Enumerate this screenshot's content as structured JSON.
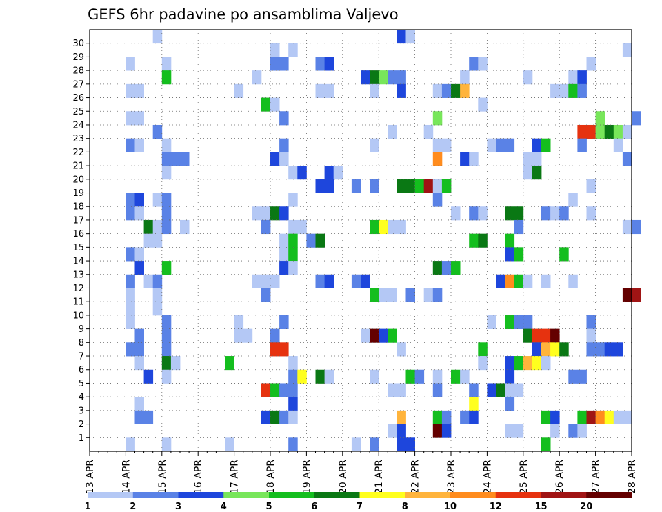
{
  "chart_data": {
    "type": "heatmap",
    "title": "GEFS 6hr padavine po ansamblima Valjevo",
    "y_members": [
      1,
      2,
      3,
      4,
      5,
      6,
      7,
      8,
      9,
      10,
      11,
      12,
      13,
      14,
      15,
      16,
      17,
      18,
      19,
      20,
      21,
      22,
      23,
      24,
      25,
      26,
      27,
      28,
      29,
      30
    ],
    "x_tick_labels": [
      "13 APR",
      "14 APR",
      "15 APR",
      "16 APR",
      "17 APR",
      "18 APR",
      "19 APR",
      "20 APR",
      "21 APR",
      "22 APR",
      "23 APR",
      "24 APR",
      "25 APR",
      "26 APR",
      "27 APR",
      "28 APR"
    ],
    "time_step_hours": 6,
    "x_range_steps": [
      0,
      60
    ],
    "grid": true,
    "legend": {
      "position": "bottom",
      "bounds": [
        "1",
        "2",
        "3",
        "4",
        "5",
        "6",
        "7",
        "8",
        "10",
        "12",
        "15",
        "20"
      ],
      "colors": [
        "#b4c8f5",
        "#5a82e6",
        "#1e46dc",
        "#78e65a",
        "#14be1e",
        "#0a7814",
        "#ffff1e",
        "#ffb43c",
        "#ff8c1e",
        "#e6320f",
        "#a01414",
        "#640000"
      ]
    },
    "cells_note": "cells are [member, time_step_index_from_13_APR_00UTC, color_class_index]",
    "cells": [
      [
        30,
        7,
        0
      ],
      [
        30,
        34,
        2
      ],
      [
        30,
        35,
        0
      ],
      [
        29,
        20,
        0
      ],
      [
        29,
        22,
        0
      ],
      [
        29,
        59,
        0
      ],
      [
        28,
        4,
        0
      ],
      [
        28,
        8,
        0
      ],
      [
        28,
        20,
        1
      ],
      [
        28,
        21,
        1
      ],
      [
        28,
        25,
        1
      ],
      [
        28,
        26,
        2
      ],
      [
        28,
        42,
        1
      ],
      [
        28,
        43,
        0
      ],
      [
        28,
        55,
        0
      ],
      [
        27,
        8,
        4
      ],
      [
        27,
        18,
        0
      ],
      [
        27,
        30,
        2
      ],
      [
        27,
        31,
        5
      ],
      [
        27,
        32,
        3
      ],
      [
        27,
        33,
        1
      ],
      [
        27,
        34,
        1
      ],
      [
        27,
        41,
        0
      ],
      [
        27,
        48,
        0
      ],
      [
        27,
        53,
        0
      ],
      [
        27,
        54,
        2
      ],
      [
        26,
        4,
        0
      ],
      [
        26,
        5,
        0
      ],
      [
        26,
        16,
        0
      ],
      [
        26,
        25,
        0
      ],
      [
        26,
        26,
        0
      ],
      [
        26,
        31,
        0
      ],
      [
        26,
        34,
        2
      ],
      [
        26,
        38,
        0
      ],
      [
        26,
        39,
        1
      ],
      [
        26,
        40,
        5
      ],
      [
        26,
        41,
        7
      ],
      [
        26,
        51,
        0
      ],
      [
        26,
        52,
        0
      ],
      [
        26,
        53,
        4
      ],
      [
        26,
        54,
        1
      ],
      [
        25,
        19,
        4
      ],
      [
        25,
        20,
        0
      ],
      [
        25,
        43,
        0
      ],
      [
        24,
        4,
        0
      ],
      [
        24,
        5,
        0
      ],
      [
        24,
        21,
        1
      ],
      [
        24,
        38,
        3
      ],
      [
        24,
        56,
        3
      ],
      [
        24,
        60,
        1
      ],
      [
        23,
        7,
        1
      ],
      [
        23,
        33,
        0
      ],
      [
        23,
        37,
        0
      ],
      [
        23,
        54,
        9
      ],
      [
        23,
        55,
        9
      ],
      [
        23,
        56,
        3
      ],
      [
        23,
        57,
        5
      ],
      [
        23,
        58,
        3
      ],
      [
        23,
        59,
        0
      ],
      [
        22,
        4,
        1
      ],
      [
        22,
        5,
        0
      ],
      [
        22,
        8,
        0
      ],
      [
        22,
        21,
        1
      ],
      [
        22,
        31,
        0
      ],
      [
        22,
        38,
        0
      ],
      [
        22,
        39,
        0
      ],
      [
        22,
        44,
        0
      ],
      [
        22,
        45,
        1
      ],
      [
        22,
        46,
        1
      ],
      [
        22,
        49,
        2
      ],
      [
        22,
        50,
        4
      ],
      [
        22,
        54,
        1
      ],
      [
        22,
        58,
        0
      ],
      [
        21,
        8,
        1
      ],
      [
        21,
        9,
        1
      ],
      [
        21,
        10,
        1
      ],
      [
        21,
        20,
        2
      ],
      [
        21,
        21,
        0
      ],
      [
        21,
        38,
        8
      ],
      [
        21,
        41,
        2
      ],
      [
        21,
        42,
        0
      ],
      [
        21,
        48,
        0
      ],
      [
        21,
        49,
        0
      ],
      [
        21,
        59,
        1
      ],
      [
        20,
        8,
        0
      ],
      [
        20,
        22,
        0
      ],
      [
        20,
        23,
        2
      ],
      [
        20,
        26,
        2
      ],
      [
        20,
        27,
        0
      ],
      [
        20,
        48,
        0
      ],
      [
        20,
        49,
        5
      ],
      [
        19,
        25,
        2
      ],
      [
        19,
        26,
        2
      ],
      [
        19,
        29,
        1
      ],
      [
        19,
        31,
        1
      ],
      [
        19,
        34,
        5
      ],
      [
        19,
        35,
        5
      ],
      [
        19,
        36,
        4
      ],
      [
        19,
        37,
        10
      ],
      [
        19,
        38,
        0
      ],
      [
        19,
        39,
        4
      ],
      [
        19,
        55,
        0
      ],
      [
        18,
        4,
        1
      ],
      [
        18,
        5,
        2
      ],
      [
        18,
        7,
        0
      ],
      [
        18,
        8,
        1
      ],
      [
        18,
        22,
        0
      ],
      [
        18,
        38,
        1
      ],
      [
        18,
        53,
        0
      ],
      [
        17,
        4,
        1
      ],
      [
        17,
        5,
        0
      ],
      [
        17,
        8,
        1
      ],
      [
        17,
        18,
        0
      ],
      [
        17,
        19,
        0
      ],
      [
        17,
        20,
        5
      ],
      [
        17,
        21,
        2
      ],
      [
        17,
        40,
        0
      ],
      [
        17,
        42,
        1
      ],
      [
        17,
        43,
        0
      ],
      [
        17,
        46,
        5
      ],
      [
        17,
        47,
        5
      ],
      [
        17,
        50,
        1
      ],
      [
        17,
        51,
        0
      ],
      [
        17,
        52,
        1
      ],
      [
        17,
        55,
        0
      ],
      [
        16,
        6,
        5
      ],
      [
        16,
        7,
        0
      ],
      [
        16,
        8,
        1
      ],
      [
        16,
        10,
        0
      ],
      [
        16,
        19,
        1
      ],
      [
        16,
        22,
        0
      ],
      [
        16,
        23,
        0
      ],
      [
        16,
        31,
        4
      ],
      [
        16,
        32,
        6
      ],
      [
        16,
        33,
        0
      ],
      [
        16,
        34,
        0
      ],
      [
        16,
        47,
        1
      ],
      [
        16,
        59,
        0
      ],
      [
        16,
        60,
        1
      ],
      [
        15,
        6,
        0
      ],
      [
        15,
        7,
        0
      ],
      [
        15,
        21,
        0
      ],
      [
        15,
        22,
        4
      ],
      [
        15,
        24,
        1
      ],
      [
        15,
        25,
        5
      ],
      [
        15,
        42,
        4
      ],
      [
        15,
        43,
        5
      ],
      [
        15,
        46,
        4
      ],
      [
        14,
        4,
        1
      ],
      [
        14,
        5,
        0
      ],
      [
        14,
        21,
        0
      ],
      [
        14,
        22,
        4
      ],
      [
        14,
        46,
        2
      ],
      [
        14,
        47,
        4
      ],
      [
        14,
        52,
        4
      ],
      [
        13,
        5,
        2
      ],
      [
        13,
        8,
        4
      ],
      [
        13,
        21,
        2
      ],
      [
        13,
        22,
        0
      ],
      [
        13,
        38,
        5
      ],
      [
        13,
        39,
        1
      ],
      [
        13,
        40,
        4
      ],
      [
        12,
        4,
        1
      ],
      [
        12,
        6,
        0
      ],
      [
        12,
        7,
        1
      ],
      [
        12,
        18,
        0
      ],
      [
        12,
        19,
        0
      ],
      [
        12,
        20,
        0
      ],
      [
        12,
        25,
        1
      ],
      [
        12,
        26,
        2
      ],
      [
        12,
        29,
        1
      ],
      [
        12,
        30,
        2
      ],
      [
        12,
        45,
        2
      ],
      [
        12,
        46,
        8
      ],
      [
        12,
        47,
        4
      ],
      [
        12,
        48,
        0
      ],
      [
        12,
        50,
        0
      ],
      [
        12,
        53,
        0
      ],
      [
        11,
        4,
        0
      ],
      [
        11,
        7,
        0
      ],
      [
        11,
        19,
        1
      ],
      [
        11,
        31,
        4
      ],
      [
        11,
        32,
        0
      ],
      [
        11,
        33,
        0
      ],
      [
        11,
        35,
        1
      ],
      [
        11,
        37,
        0
      ],
      [
        11,
        38,
        1
      ],
      [
        11,
        59,
        11
      ],
      [
        11,
        60,
        10
      ],
      [
        10,
        4,
        0
      ],
      [
        10,
        7,
        0
      ],
      [
        9,
        4,
        0
      ],
      [
        9,
        8,
        1
      ],
      [
        9,
        16,
        0
      ],
      [
        9,
        21,
        1
      ],
      [
        9,
        44,
        0
      ],
      [
        9,
        46,
        4
      ],
      [
        9,
        47,
        1
      ],
      [
        9,
        48,
        1
      ],
      [
        9,
        55,
        1
      ],
      [
        8,
        5,
        1
      ],
      [
        8,
        8,
        1
      ],
      [
        8,
        16,
        0
      ],
      [
        8,
        17,
        0
      ],
      [
        8,
        20,
        1
      ],
      [
        8,
        30,
        0
      ],
      [
        8,
        31,
        11
      ],
      [
        8,
        32,
        2
      ],
      [
        8,
        33,
        4
      ],
      [
        8,
        48,
        5
      ],
      [
        8,
        49,
        9
      ],
      [
        8,
        50,
        9
      ],
      [
        8,
        51,
        11
      ],
      [
        8,
        55,
        0
      ],
      [
        7,
        4,
        1
      ],
      [
        7,
        5,
        1
      ],
      [
        7,
        8,
        1
      ],
      [
        7,
        20,
        9
      ],
      [
        7,
        21,
        9
      ],
      [
        7,
        34,
        0
      ],
      [
        7,
        43,
        4
      ],
      [
        7,
        49,
        2
      ],
      [
        7,
        50,
        7
      ],
      [
        7,
        51,
        6
      ],
      [
        7,
        52,
        5
      ],
      [
        7,
        55,
        1
      ],
      [
        7,
        56,
        1
      ],
      [
        7,
        57,
        2
      ],
      [
        7,
        58,
        2
      ],
      [
        6,
        5,
        0
      ],
      [
        6,
        8,
        5
      ],
      [
        6,
        9,
        0
      ],
      [
        6,
        15,
        4
      ],
      [
        6,
        22,
        0
      ],
      [
        6,
        43,
        0
      ],
      [
        6,
        46,
        2
      ],
      [
        6,
        47,
        4
      ],
      [
        6,
        48,
        7
      ],
      [
        6,
        49,
        6
      ],
      [
        6,
        50,
        0
      ],
      [
        5,
        6,
        2
      ],
      [
        5,
        8,
        0
      ],
      [
        5,
        22,
        1
      ],
      [
        5,
        23,
        6
      ],
      [
        5,
        25,
        5
      ],
      [
        5,
        26,
        0
      ],
      [
        5,
        31,
        0
      ],
      [
        5,
        35,
        4
      ],
      [
        5,
        36,
        1
      ],
      [
        5,
        38,
        0
      ],
      [
        5,
        40,
        4
      ],
      [
        5,
        41,
        0
      ],
      [
        5,
        46,
        2
      ],
      [
        5,
        53,
        1
      ],
      [
        5,
        54,
        1
      ],
      [
        4,
        19,
        9
      ],
      [
        4,
        20,
        4
      ],
      [
        4,
        21,
        1
      ],
      [
        4,
        22,
        1
      ],
      [
        4,
        33,
        0
      ],
      [
        4,
        34,
        0
      ],
      [
        4,
        38,
        1
      ],
      [
        4,
        42,
        1
      ],
      [
        4,
        44,
        2
      ],
      [
        4,
        45,
        5
      ],
      [
        4,
        46,
        0
      ],
      [
        4,
        47,
        0
      ],
      [
        3,
        5,
        0
      ],
      [
        3,
        22,
        2
      ],
      [
        3,
        42,
        6
      ],
      [
        3,
        46,
        1
      ],
      [
        2,
        5,
        1
      ],
      [
        2,
        6,
        1
      ],
      [
        2,
        19,
        2
      ],
      [
        2,
        20,
        5
      ],
      [
        2,
        21,
        1
      ],
      [
        2,
        22,
        0
      ],
      [
        2,
        34,
        7
      ],
      [
        2,
        38,
        4
      ],
      [
        2,
        39,
        1
      ],
      [
        2,
        41,
        1
      ],
      [
        2,
        42,
        2
      ],
      [
        2,
        50,
        4
      ],
      [
        2,
        51,
        2
      ],
      [
        2,
        54,
        4
      ],
      [
        2,
        55,
        10
      ],
      [
        2,
        56,
        8
      ],
      [
        2,
        57,
        6
      ],
      [
        2,
        58,
        0
      ],
      [
        2,
        59,
        0
      ],
      [
        1,
        33,
        0
      ],
      [
        1,
        34,
        2
      ],
      [
        1,
        38,
        11
      ],
      [
        1,
        39,
        2
      ],
      [
        1,
        46,
        0
      ],
      [
        1,
        47,
        0
      ],
      [
        1,
        51,
        0
      ],
      [
        1,
        53,
        1
      ],
      [
        1,
        54,
        0
      ],
      [
        0,
        4,
        0
      ],
      [
        0,
        8,
        0
      ],
      [
        0,
        15,
        0
      ],
      [
        0,
        22,
        1
      ],
      [
        0,
        29,
        0
      ],
      [
        0,
        31,
        1
      ],
      [
        0,
        34,
        2
      ],
      [
        0,
        35,
        2
      ],
      [
        0,
        50,
        4
      ]
    ]
  }
}
